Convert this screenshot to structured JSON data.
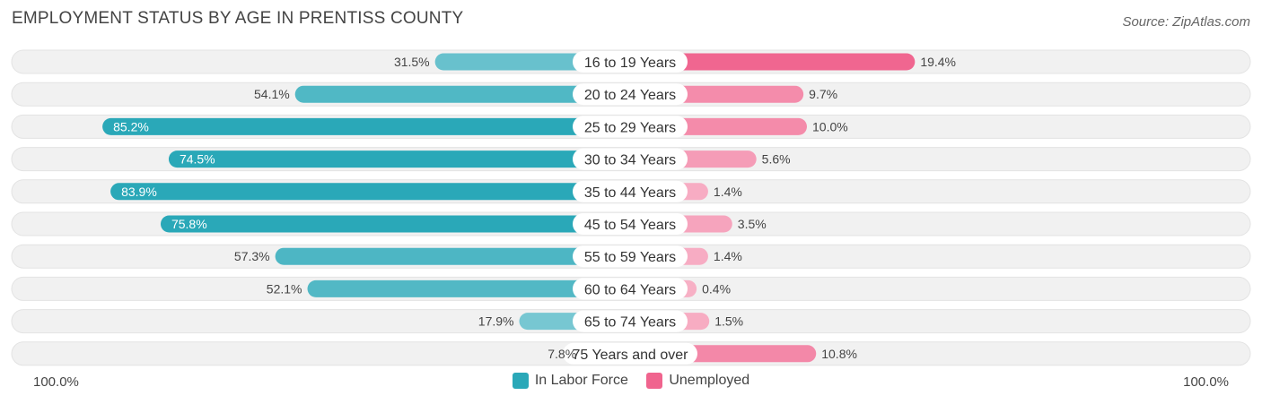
{
  "chart_data": {
    "type": "bar",
    "orientation": "diverging-horizontal",
    "title": "EMPLOYMENT STATUS BY AGE IN PRENTISS COUNTY",
    "source": "Source: ZipAtlas.com",
    "categories": [
      "16 to 19 Years",
      "20 to 24 Years",
      "25 to 29 Years",
      "30 to 34 Years",
      "35 to 44 Years",
      "45 to 54 Years",
      "55 to 59 Years",
      "60 to 64 Years",
      "65 to 74 Years",
      "75 Years and over"
    ],
    "series": [
      {
        "name": "In Labor Force",
        "values": [
          31.5,
          54.1,
          85.2,
          74.5,
          83.9,
          75.8,
          57.3,
          52.1,
          17.9,
          7.8
        ],
        "labels": [
          "31.5%",
          "54.1%",
          "85.2%",
          "74.5%",
          "83.9%",
          "75.8%",
          "57.3%",
          "52.1%",
          "17.9%",
          "7.8%"
        ],
        "color": "#2aa8b8"
      },
      {
        "name": "Unemployed",
        "values": [
          19.4,
          9.7,
          10.0,
          5.6,
          1.4,
          3.5,
          1.4,
          0.4,
          1.5,
          10.8
        ],
        "labels": [
          "19.4%",
          "9.7%",
          "10.0%",
          "5.6%",
          "1.4%",
          "3.5%",
          "1.4%",
          "0.4%",
          "1.5%",
          "10.8%"
        ],
        "color": "#f0648e"
      }
    ],
    "axis_min_label": "100.0%",
    "axis_max_label": "100.0%",
    "left_range": [
      0,
      100
    ],
    "right_range": [
      0,
      100
    ]
  },
  "legend": {
    "labor_force": "In Labor Force",
    "unemployed": "Unemployed"
  }
}
